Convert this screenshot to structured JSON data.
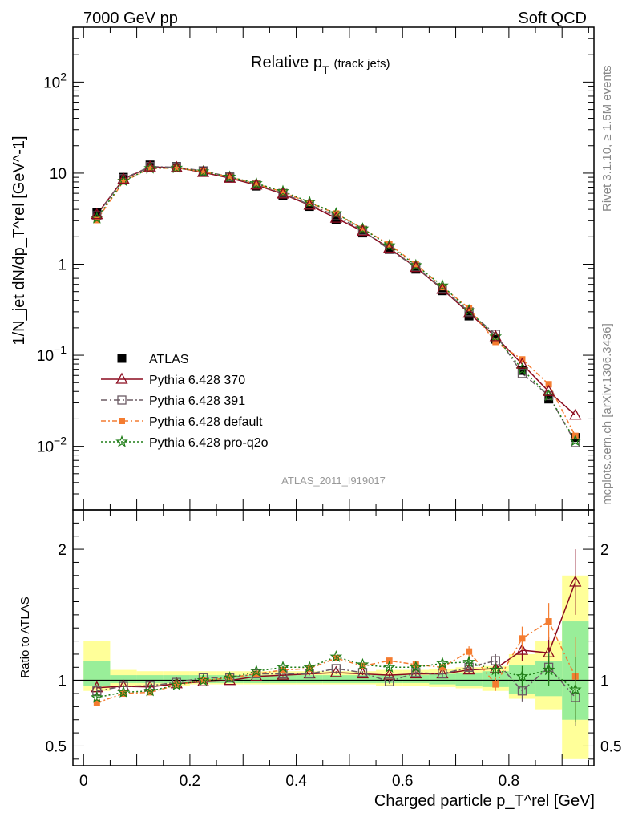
{
  "header": {
    "left": "7000 GeV pp",
    "right": "Soft QCD"
  },
  "side_text": {
    "top": "Rivet 3.1.10, ≥ 1.5M events",
    "bottom": "mcplots.cern.ch [arXiv:1306.3436]"
  },
  "main_title": {
    "text": "Relative p",
    "sub": "T",
    "suffix": "(track jets)"
  },
  "analysis_id": "ATLAS_2011_I919017",
  "chart_data": [
    {
      "type": "scatter",
      "title": "Relative pT (track jets)",
      "ylabel": "1/N_jet dN/dp_T^rel [GeV^-1]",
      "yscale": "log",
      "ylim": [
        0.002,
        400
      ],
      "xlim": [
        -0.02,
        0.96
      ],
      "y_tick_labels": [
        {
          "value": 0.01,
          "base": "10",
          "exp": "−2"
        },
        {
          "value": 0.1,
          "base": "10",
          "exp": "−1"
        },
        {
          "value": 1,
          "base": "1",
          "exp": ""
        },
        {
          "value": 10,
          "base": "10",
          "exp": ""
        },
        {
          "value": 100,
          "base": "10",
          "exp": "2"
        }
      ],
      "x": [
        0.025,
        0.075,
        0.125,
        0.175,
        0.225,
        0.275,
        0.325,
        0.375,
        0.425,
        0.475,
        0.525,
        0.575,
        0.625,
        0.675,
        0.725,
        0.775,
        0.825,
        0.875,
        0.925
      ],
      "series": [
        {
          "name": "ATLAS",
          "key": "atlas",
          "values": [
            3.7,
            9.0,
            12.3,
            11.8,
            10.4,
            8.9,
            7.2,
            5.7,
            4.3,
            3.05,
            2.2,
            1.45,
            0.88,
            0.51,
            0.27,
            0.15,
            0.068,
            0.033,
            0.0125
          ]
        },
        {
          "name": "Pythia 6.428 370",
          "key": "p370",
          "values": [
            3.5,
            8.6,
            11.7,
            11.5,
            10.2,
            8.8,
            7.4,
            5.9,
            4.45,
            3.2,
            2.3,
            1.5,
            0.92,
            0.53,
            0.29,
            0.16,
            0.08,
            0.04,
            0.022
          ]
        },
        {
          "name": "Pythia 6.428 391",
          "key": "p391",
          "values": [
            3.4,
            8.7,
            11.8,
            11.6,
            10.6,
            9.1,
            7.5,
            6.0,
            4.5,
            3.4,
            2.35,
            1.45,
            0.93,
            0.54,
            0.3,
            0.17,
            0.063,
            0.036,
            0.011
          ]
        },
        {
          "name": "Pythia 6.428 default",
          "key": "pdef",
          "values": [
            3.05,
            8.1,
            11.2,
            11.4,
            10.4,
            9.1,
            7.6,
            6.2,
            4.7,
            3.6,
            2.45,
            1.65,
            1.0,
            0.56,
            0.33,
            0.14,
            0.09,
            0.048,
            0.013
          ]
        },
        {
          "name": "Pythia 6.428 pro-q2o",
          "key": "pq2o",
          "values": [
            3.2,
            8.2,
            11.3,
            11.4,
            10.4,
            9.1,
            7.7,
            6.3,
            4.8,
            3.6,
            2.45,
            1.6,
            0.97,
            0.58,
            0.31,
            0.16,
            0.07,
            0.036,
            0.0115
          ]
        }
      ]
    },
    {
      "type": "scatter",
      "ylabel": "Ratio to ATLAS",
      "xlabel": "Charged particle p_T^rel [GeV]",
      "xlim": [
        -0.02,
        0.96
      ],
      "ylim": [
        0.35,
        2.3
      ],
      "y_ticks": [
        0.5,
        1,
        2
      ],
      "y_tick_labels": [
        "0.5",
        "1",
        "2"
      ],
      "x_ticks": [
        0,
        0.2,
        0.4,
        0.6,
        0.8
      ],
      "x_tick_labels": [
        "0",
        "0.2",
        "0.4",
        "0.6",
        "0.8"
      ],
      "reference": 1.0,
      "x": [
        0.025,
        0.075,
        0.125,
        0.175,
        0.225,
        0.275,
        0.325,
        0.375,
        0.425,
        0.475,
        0.525,
        0.575,
        0.625,
        0.675,
        0.725,
        0.775,
        0.825,
        0.875,
        0.925
      ],
      "band_yellow": [
        [
          0.92,
          1.3
        ],
        [
          0.96,
          1.08
        ],
        [
          0.96,
          1.07
        ],
        [
          0.96,
          1.07
        ],
        [
          0.97,
          1.07
        ],
        [
          0.97,
          1.07
        ],
        [
          0.97,
          1.07
        ],
        [
          0.97,
          1.07
        ],
        [
          0.97,
          1.07
        ],
        [
          0.97,
          1.07
        ],
        [
          0.97,
          1.07
        ],
        [
          0.96,
          1.08
        ],
        [
          0.96,
          1.08
        ],
        [
          0.95,
          1.09
        ],
        [
          0.94,
          1.1
        ],
        [
          0.92,
          1.11
        ],
        [
          0.86,
          1.2
        ],
        [
          0.78,
          1.3
        ],
        [
          0.4,
          1.8
        ]
      ],
      "band_green": [
        [
          0.96,
          1.15
        ],
        [
          0.98,
          1.04
        ],
        [
          0.98,
          1.04
        ],
        [
          0.98,
          1.04
        ],
        [
          0.98,
          1.04
        ],
        [
          0.98,
          1.04
        ],
        [
          0.98,
          1.04
        ],
        [
          0.98,
          1.04
        ],
        [
          0.98,
          1.04
        ],
        [
          0.98,
          1.04
        ],
        [
          0.98,
          1.04
        ],
        [
          0.98,
          1.04
        ],
        [
          0.98,
          1.04
        ],
        [
          0.97,
          1.05
        ],
        [
          0.96,
          1.06
        ],
        [
          0.95,
          1.07
        ],
        [
          0.9,
          1.12
        ],
        [
          0.88,
          1.15
        ],
        [
          0.7,
          1.45
        ]
      ],
      "series": [
        {
          "name": "Pythia 6.428 370",
          "key": "p370",
          "values": [
            0.945,
            0.955,
            0.95,
            0.975,
            0.99,
            1.0,
            1.03,
            1.04,
            1.05,
            1.06,
            1.05,
            1.04,
            1.05,
            1.05,
            1.08,
            1.09,
            1.23,
            1.21,
            1.75
          ],
          "err": [
            0.02,
            0.01,
            0.01,
            0.01,
            0.01,
            0.01,
            0.01,
            0.01,
            0.01,
            0.01,
            0.01,
            0.01,
            0.015,
            0.02,
            0.03,
            0.04,
            0.08,
            0.12,
            0.25
          ]
        },
        {
          "name": "Pythia 6.428 391",
          "key": "p391",
          "values": [
            0.92,
            0.955,
            0.96,
            0.985,
            1.02,
            1.02,
            1.05,
            1.05,
            1.05,
            1.09,
            1.06,
            0.99,
            1.06,
            1.05,
            1.1,
            1.15,
            0.92,
            1.1,
            0.87
          ],
          "err": [
            0.02,
            0.01,
            0.01,
            0.01,
            0.01,
            0.01,
            0.01,
            0.01,
            0.01,
            0.01,
            0.01,
            0.015,
            0.02,
            0.025,
            0.035,
            0.05,
            0.08,
            0.12,
            0.22
          ]
        },
        {
          "name": "Pythia 6.428 default",
          "key": "pdef",
          "values": [
            0.83,
            0.9,
            0.91,
            0.965,
            1.0,
            1.02,
            1.05,
            1.08,
            1.09,
            1.17,
            1.11,
            1.15,
            1.12,
            1.1,
            1.22,
            0.97,
            1.32,
            1.45,
            1.03
          ],
          "err": [
            0.02,
            0.01,
            0.01,
            0.01,
            0.01,
            0.01,
            0.01,
            0.01,
            0.01,
            0.01,
            0.01,
            0.015,
            0.02,
            0.025,
            0.04,
            0.05,
            0.09,
            0.14,
            0.3
          ]
        },
        {
          "name": "Pythia 6.428 pro-q2o",
          "key": "pq2o",
          "values": [
            0.87,
            0.91,
            0.92,
            0.965,
            1.0,
            1.02,
            1.07,
            1.1,
            1.1,
            1.18,
            1.12,
            1.1,
            1.1,
            1.13,
            1.14,
            1.08,
            1.03,
            1.08,
            0.93
          ],
          "err": [
            0.02,
            0.01,
            0.01,
            0.01,
            0.01,
            0.01,
            0.01,
            0.01,
            0.01,
            0.01,
            0.01,
            0.015,
            0.02,
            0.025,
            0.035,
            0.05,
            0.08,
            0.12,
            0.25
          ]
        }
      ]
    }
  ],
  "colors": {
    "atlas": "#000000",
    "p370": "#8b0a1e",
    "p391": "#6b5b63",
    "pdef": "#f47c30",
    "pq2o": "#1e7d16",
    "band_yellow": "#ffff99",
    "band_green": "#99ee99"
  }
}
